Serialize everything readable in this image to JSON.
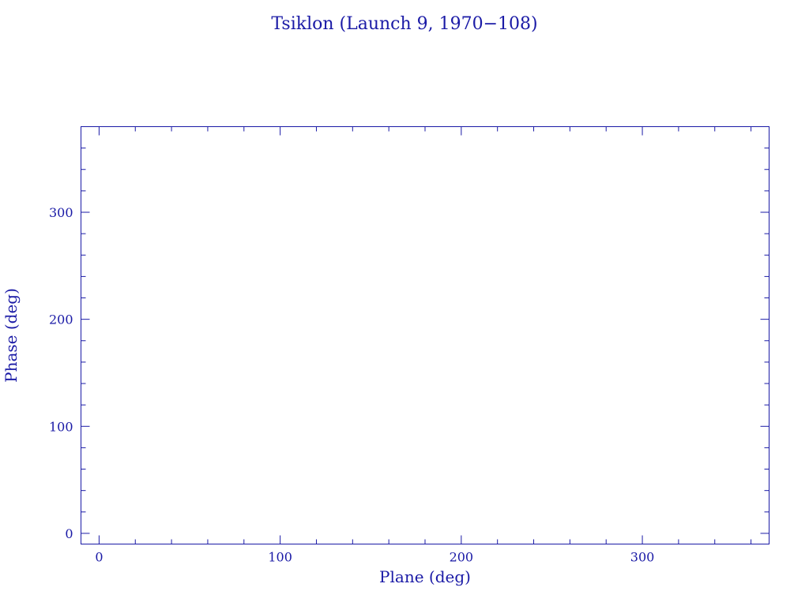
{
  "chart_data": {
    "type": "scatter",
    "title": "Tsiklon (Launch 9, 1970−108)",
    "xlabel": "Plane (deg)",
    "ylabel": "Phase (deg)",
    "xlim": [
      -10,
      370
    ],
    "ylim": [
      -10,
      380
    ],
    "xticks_major": [
      0,
      100,
      200,
      300
    ],
    "xticks_minor_step": 20,
    "yticks_major": [
      0,
      100,
      200,
      300
    ],
    "yticks_minor_step": 20,
    "x_tick_labels": [
      "0",
      "100",
      "200",
      "300"
    ],
    "y_tick_labels": [
      "0",
      "100",
      "200",
      "300"
    ],
    "series": [],
    "grid": false,
    "colors": {
      "ink": "#1a1aa6",
      "background": "#ffffff"
    }
  }
}
